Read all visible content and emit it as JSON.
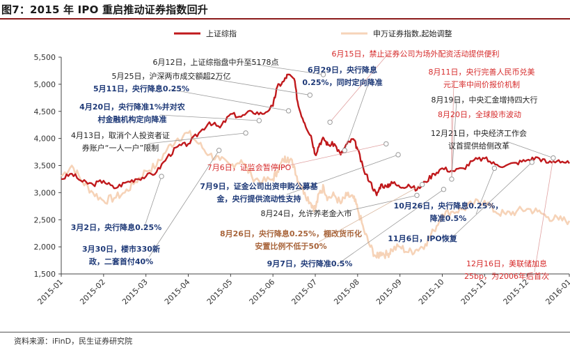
{
  "header": {
    "title": "图7：2015 年 IPO 重启推动证券指数回升"
  },
  "footer": {
    "source": "资料来源：iFinD，民生证券研究院"
  },
  "colors": {
    "sh": "#c0191c",
    "sw": "#f6d3b8",
    "navy": "#1f3a78",
    "red": "#d62b2b",
    "brown": "#a8643a",
    "title_rule": "#8b1a1a"
  },
  "chart_data": {
    "type": "line",
    "title": "2015 年 IPO 重启推动证券指数回升",
    "ylim": [
      1500,
      5500
    ],
    "yticks": [
      "1,500",
      "2,000",
      "2,500",
      "3,000",
      "3,500",
      "4,000",
      "4,500",
      "5,000",
      "5,500"
    ],
    "ytick_values": [
      1500,
      2000,
      2500,
      3000,
      3500,
      4000,
      4500,
      5000,
      5500
    ],
    "xticks": [
      "2015-01",
      "2015-02",
      "2015-03",
      "2015-04",
      "2015-05",
      "2015-06",
      "2015-07",
      "2015-08",
      "2015-09",
      "2015-10",
      "2015-11",
      "2015-12",
      "2016-01"
    ],
    "legend": [
      "上证综指",
      "申万证券指数,起始调整"
    ],
    "x_months": [
      0,
      0.25,
      0.5,
      0.75,
      1,
      1.25,
      1.5,
      1.75,
      2,
      2.25,
      2.5,
      2.75,
      3,
      3.25,
      3.5,
      3.75,
      4,
      4.25,
      4.5,
      4.75,
      5,
      5.1,
      5.25,
      5.35,
      5.5,
      5.6,
      5.75,
      5.9,
      6,
      6.1,
      6.2,
      6.3,
      6.45,
      6.6,
      6.75,
      6.9,
      7,
      7.15,
      7.3,
      7.45,
      7.55,
      7.7,
      7.8,
      8,
      8.2,
      8.4,
      8.6,
      8.8,
      9,
      9.25,
      9.5,
      9.75,
      10,
      10.25,
      10.5,
      10.75,
      11,
      11.25,
      11.5,
      11.75,
      12
    ],
    "series": [
      {
        "name": "上证综指",
        "values": [
          3250,
          3350,
          3200,
          3150,
          3220,
          3080,
          3180,
          3250,
          3300,
          3380,
          3650,
          3850,
          3900,
          4100,
          4300,
          4200,
          4450,
          4400,
          4500,
          4450,
          4600,
          4950,
          5050,
          5178,
          5100,
          4600,
          4280,
          4050,
          3700,
          3900,
          4000,
          3880,
          3900,
          3700,
          3900,
          3990,
          3800,
          3400,
          3200,
          2950,
          3150,
          3100,
          3200,
          3100,
          3150,
          3050,
          3200,
          3350,
          3450,
          3400,
          3450,
          3600,
          3630,
          3520,
          3500,
          3550,
          3600,
          3650,
          3550,
          3600,
          3540
        ]
      },
      {
        "name": "申万证券指数,起始调整",
        "values": [
          3300,
          3500,
          3200,
          3000,
          2850,
          2900,
          3000,
          3200,
          3400,
          3500,
          3800,
          4000,
          4100,
          3900,
          3700,
          3600,
          3500,
          3600,
          3300,
          3200,
          3250,
          3400,
          3600,
          3650,
          3500,
          3200,
          3000,
          2800,
          2700,
          3000,
          3100,
          2900,
          2950,
          2800,
          2950,
          2900,
          2700,
          2300,
          2000,
          1800,
          1900,
          1850,
          1950,
          2000,
          1900,
          1950,
          2050,
          2300,
          2600,
          2650,
          2700,
          2800,
          2850,
          2650,
          2600,
          2650,
          2700,
          2650,
          2550,
          2500,
          2480
        ]
      }
    ],
    "markers": [
      {
        "m": 3.75,
        "v": 3300
      },
      {
        "m": 5.9,
        "v": 3780
      },
      {
        "m": 6.9,
        "v": 4100
      },
      {
        "m": 7.4,
        "v": 4330
      },
      {
        "m": 8.5,
        "v": 4510
      },
      {
        "m": 9.3,
        "v": 4800
      },
      {
        "m": 9.8,
        "v": 5178
      },
      {
        "m": 10.05,
        "v": 4300
      },
      {
        "m": 10.6,
        "v": 3780
      },
      {
        "m": 12.15,
        "v": 3900
      },
      {
        "m": 12.6,
        "v": 3700
      },
      {
        "m": 13.3,
        "v": 2950
      },
      {
        "m": 13.5,
        "v": 3150
      },
      {
        "m": 14.3,
        "v": 3060
      },
      {
        "m": 14.6,
        "v": 3250
      },
      {
        "m": 16.2,
        "v": 3450
      },
      {
        "m": 17.6,
        "v": 3560
      },
      {
        "m": 18.4,
        "v": 3640
      }
    ],
    "annotations": [
      {
        "lines": [
          "6月12日，上证综指盘中升至5178点"
        ],
        "style": "black",
        "m": 9.8,
        "v": 5178
      },
      {
        "lines": [
          "5月25日，沪深两市成交额超2万亿"
        ],
        "style": "black",
        "m": 9.3,
        "v": 4800
      },
      {
        "lines": [
          "5月11日，央行降息0.25%"
        ],
        "style": "navy",
        "m": 8.5,
        "v": 4510
      },
      {
        "lines": [
          "4月20日，央行降准1%并对农",
          "村金融机构定向降准"
        ],
        "style": "navy",
        "m": 7.4,
        "v": 4330
      },
      {
        "lines": [
          "4月13日，取消个人投资者证",
          "券账户“一人一户”限制"
        ],
        "style": "black",
        "m": 6.9,
        "v": 4100
      },
      {
        "lines": [
          "3月2日，央行降息0.25%"
        ],
        "style": "navy",
        "m": 3.75,
        "v": 3300
      },
      {
        "lines": [
          "3月30日，楼市330新",
          "政，二套首付40%"
        ],
        "style": "navy",
        "m": 5.9,
        "v": 3780
      },
      {
        "lines": [
          "6月15日，禁止证券公司为场外配资活动提供便利"
        ],
        "style": "red",
        "m": 10.05,
        "v": 4300
      },
      {
        "lines": [
          "6月29日，央行降息",
          "0.25%，同时定向降准"
        ],
        "style": "navy",
        "m": 10.6,
        "v": 3780
      },
      {
        "lines": [
          "7月6日，证监会暂停IPO"
        ],
        "style": "red",
        "m": 12.15,
        "v": 3900
      },
      {
        "lines": [
          "7月9日，证金公司出资申购公募基",
          "金，央行提供流动性支持"
        ],
        "style": "navy",
        "m": 12.6,
        "v": 3700
      },
      {
        "lines": [
          "8月24日，允许养老金入市"
        ],
        "style": "black",
        "m": 13.3,
        "v": 2950
      },
      {
        "lines": [
          "8月26日，央行降息0.25%，棚改货币化",
          "安置比例不低于50%"
        ],
        "style": "brown",
        "m": 13.5,
        "v": 3150
      },
      {
        "lines": [
          "9月7日，央行降准0.5%"
        ],
        "style": "navy",
        "m": 14.3,
        "v": 3060
      },
      {
        "lines": [
          "8月11日，央行完善人民币兑美",
          "元汇率中间价报价机制"
        ],
        "style": "red",
        "m": 14.6,
        "v": 3250
      },
      {
        "lines": [
          "8月19日，中央汇金增持四大行"
        ],
        "style": "black",
        "m": 14.6,
        "v": 3250
      },
      {
        "lines": [
          "8月20日，全球股市波动"
        ],
        "style": "red",
        "m": 14.6,
        "v": 3250
      },
      {
        "lines": [
          "10月26日，央行降息0.25%，",
          "降准0.5%"
        ],
        "style": "navy",
        "m": 16.2,
        "v": 3450
      },
      {
        "lines": [
          "11月6日，IPO恢复"
        ],
        "style": "navy",
        "m": 17.6,
        "v": 3560
      },
      {
        "lines": [
          "12月21日，中央经济工作会",
          "议首提供给侧改革"
        ],
        "style": "black",
        "m": 18.4,
        "v": 3640
      },
      {
        "lines": [
          "12月16日，美联储加息",
          "25bp，为2006年后首次"
        ],
        "style": "red",
        "m": 18.4,
        "v": 3640
      }
    ]
  }
}
